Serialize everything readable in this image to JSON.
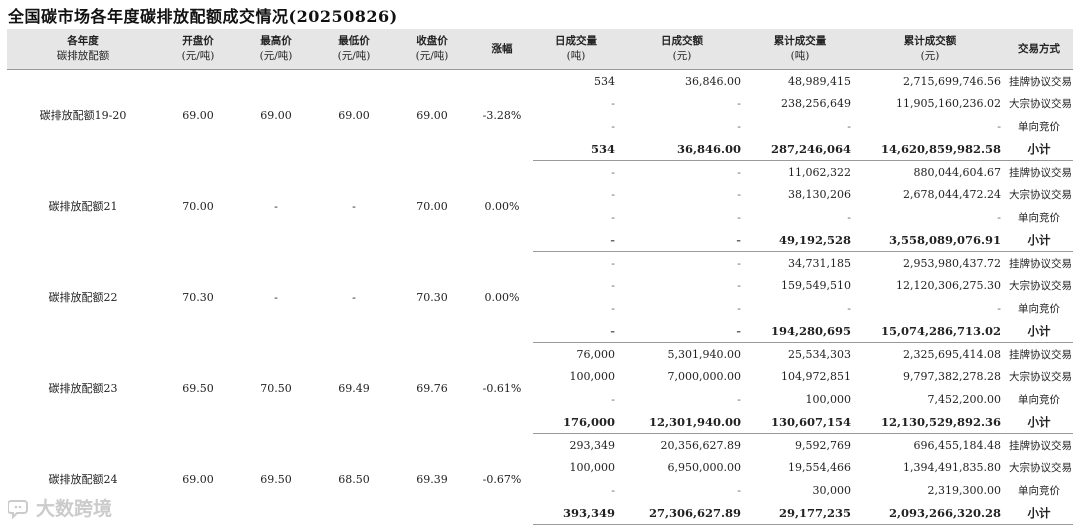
{
  "title": "全国碳市场各年度碳排放配额成交情况(20250826)",
  "columns": [
    {
      "l1": "各年度",
      "l2": "碳排放配额"
    },
    {
      "l1": "开盘价",
      "l2": "(元/吨)"
    },
    {
      "l1": "最高价",
      "l2": "(元/吨)"
    },
    {
      "l1": "最低价",
      "l2": "(元/吨)"
    },
    {
      "l1": "收盘价",
      "l2": "(元/吨)"
    },
    {
      "l1": "涨幅",
      "l2": ""
    },
    {
      "l1": "日成交量",
      "l2": "(吨)"
    },
    {
      "l1": "日成交额",
      "l2": "(元)"
    },
    {
      "l1": "累计成交量",
      "l2": "(吨)"
    },
    {
      "l1": "累计成交额",
      "l2": "(元)"
    },
    {
      "l1": "交易方式",
      "l2": ""
    }
  ],
  "groups": [
    {
      "name": "碳排放配额19-20",
      "open": "69.00",
      "high": "69.00",
      "low": "69.00",
      "close": "69.00",
      "change": "-3.28%",
      "rows": [
        {
          "dv": "534",
          "da": "36,846.00",
          "cv": "48,989,415",
          "ca": "2,715,699,746.56",
          "method": "挂牌协议交易"
        },
        {
          "dv": "-",
          "da": "-",
          "cv": "238,256,649",
          "ca": "11,905,160,236.02",
          "method": "大宗协议交易"
        },
        {
          "dv": "-",
          "da": "-",
          "cv": "-",
          "ca": "-",
          "method": "单向竞价"
        },
        {
          "dv": "534",
          "da": "36,846.00",
          "cv": "287,246,064",
          "ca": "14,620,859,982.58",
          "method": "小计"
        }
      ]
    },
    {
      "name": "碳排放配额21",
      "open": "70.00",
      "high": "-",
      "low": "-",
      "close": "70.00",
      "change": "0.00%",
      "rows": [
        {
          "dv": "-",
          "da": "-",
          "cv": "11,062,322",
          "ca": "880,044,604.67",
          "method": "挂牌协议交易"
        },
        {
          "dv": "-",
          "da": "-",
          "cv": "38,130,206",
          "ca": "2,678,044,472.24",
          "method": "大宗协议交易"
        },
        {
          "dv": "-",
          "da": "-",
          "cv": "-",
          "ca": "-",
          "method": "单向竞价"
        },
        {
          "dv": "-",
          "da": "-",
          "cv": "49,192,528",
          "ca": "3,558,089,076.91",
          "method": "小计"
        }
      ]
    },
    {
      "name": "碳排放配额22",
      "open": "70.30",
      "high": "-",
      "low": "-",
      "close": "70.30",
      "change": "0.00%",
      "rows": [
        {
          "dv": "-",
          "da": "-",
          "cv": "34,731,185",
          "ca": "2,953,980,437.72",
          "method": "挂牌协议交易"
        },
        {
          "dv": "-",
          "da": "-",
          "cv": "159,549,510",
          "ca": "12,120,306,275.30",
          "method": "大宗协议交易"
        },
        {
          "dv": "-",
          "da": "-",
          "cv": "-",
          "ca": "-",
          "method": "单向竞价"
        },
        {
          "dv": "-",
          "da": "-",
          "cv": "194,280,695",
          "ca": "15,074,286,713.02",
          "method": "小计"
        }
      ]
    },
    {
      "name": "碳排放配额23",
      "open": "69.50",
      "high": "70.50",
      "low": "69.49",
      "close": "69.76",
      "change": "-0.61%",
      "rows": [
        {
          "dv": "76,000",
          "da": "5,301,940.00",
          "cv": "25,534,303",
          "ca": "2,325,695,414.08",
          "method": "挂牌协议交易"
        },
        {
          "dv": "100,000",
          "da": "7,000,000.00",
          "cv": "104,972,851",
          "ca": "9,797,382,278.28",
          "method": "大宗协议交易"
        },
        {
          "dv": "-",
          "da": "-",
          "cv": "100,000",
          "ca": "7,452,200.00",
          "method": "单向竞价"
        },
        {
          "dv": "176,000",
          "da": "12,301,940.00",
          "cv": "130,607,154",
          "ca": "12,130,529,892.36",
          "method": "小计"
        }
      ]
    },
    {
      "name": "碳排放配额24",
      "open": "69.00",
      "high": "69.50",
      "low": "68.50",
      "close": "69.39",
      "change": "-0.67%",
      "rows": [
        {
          "dv": "293,349",
          "da": "20,356,627.89",
          "cv": "9,592,769",
          "ca": "696,455,184.48",
          "method": "挂牌协议交易"
        },
        {
          "dv": "100,000",
          "da": "6,950,000.00",
          "cv": "19,554,466",
          "ca": "1,394,491,835.80",
          "method": "大宗协议交易"
        },
        {
          "dv": "-",
          "da": "-",
          "cv": "30,000",
          "ca": "2,319,300.00",
          "method": "单向竞价"
        },
        {
          "dv": "393,349",
          "da": "27,306,627.89",
          "cv": "29,177,235",
          "ca": "2,093,266,320.28",
          "method": "小计"
        }
      ]
    }
  ],
  "watermark": {
    "text": "大数跨境",
    "icon": "chat-bubble-logo-icon"
  }
}
